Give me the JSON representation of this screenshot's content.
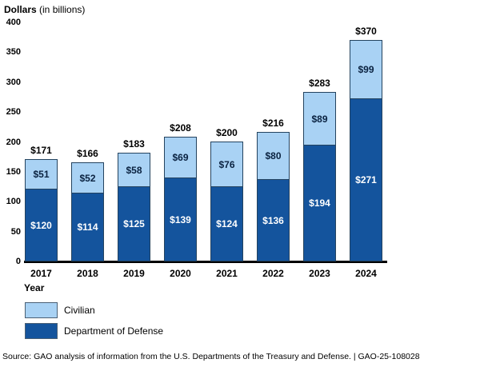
{
  "title": {
    "bold": "Dollars",
    "rest": " (in billions)"
  },
  "chart_data": {
    "type": "bar",
    "stacked": true,
    "title": "Dollars (in billions)",
    "xlabel": "Year",
    "ylabel": "Dollars (in billions)",
    "categories": [
      "2017",
      "2018",
      "2019",
      "2020",
      "2021",
      "2022",
      "2023",
      "2024"
    ],
    "series": [
      {
        "name": "Civilian",
        "color": "#a9d2f4",
        "label_color": "#0a2240",
        "values": [
          51,
          52,
          58,
          69,
          76,
          80,
          89,
          99
        ],
        "labels": [
          "$51",
          "$52",
          "$58",
          "$69",
          "$76",
          "$80",
          "$89",
          "$99"
        ]
      },
      {
        "name": "Department of Defense",
        "color": "#14549d",
        "label_color": "#ffffff",
        "values": [
          120,
          114,
          125,
          139,
          124,
          136,
          194,
          271
        ],
        "labels": [
          "$120",
          "$114",
          "$125",
          "$139",
          "$124",
          "$136",
          "$194",
          "$271"
        ]
      }
    ],
    "totals": [
      171,
      166,
      183,
      208,
      200,
      216,
      283,
      370
    ],
    "total_labels": [
      "$171",
      "$166",
      "$183",
      "$208",
      "$200",
      "$216",
      "$283",
      "$370"
    ],
    "ylim": [
      0,
      400
    ],
    "yticks": [
      0,
      50,
      100,
      150,
      200,
      250,
      300,
      350,
      400
    ],
    "grid": false,
    "legend_position": "bottom-left"
  },
  "legend": {
    "items": [
      {
        "label": "Civilian",
        "color": "#a9d2f4"
      },
      {
        "label": "Department of Defense",
        "color": "#14549d"
      }
    ]
  },
  "x_axis_title": "Year",
  "source": "Source: GAO analysis of information from the U.S. Departments of the Treasury and Defense.  |  GAO-25-108028"
}
